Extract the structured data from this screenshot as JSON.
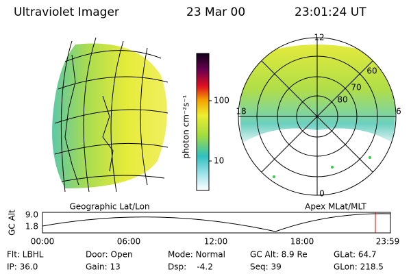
{
  "header": {
    "instrument": "Ultraviolet Imager",
    "date": "23 Mar 00",
    "time": "23:01:24 UT"
  },
  "left_panel": {
    "caption": "Geographic Lat/Lon"
  },
  "right_panel": {
    "caption": "Apex MLat/MLT",
    "mlt_labels": [
      "12",
      "18",
      "6",
      "0"
    ],
    "lat_labels": [
      "60",
      "70",
      "80"
    ]
  },
  "colorbar": {
    "label": "photon cm⁻²s⁻¹",
    "ticks": [
      "100",
      "10"
    ]
  },
  "altitude_plot": {
    "ylabel": "GC Alt",
    "yticks": [
      "9.0",
      "1.8"
    ],
    "xticks": [
      "00:00",
      "06:00",
      "12:00",
      "18:00",
      "23:59"
    ]
  },
  "info": {
    "rows": [
      [
        "Flt: LBHL",
        "Door: Open",
        "Mode: Normal",
        "GC Alt: 8.9 Re",
        "GLat: 64.7"
      ],
      [
        "IP: 36.0",
        "Gain: 13",
        "Dsp:    -4.2",
        "Seq: 39",
        "GLon: 218.5"
      ]
    ]
  }
}
